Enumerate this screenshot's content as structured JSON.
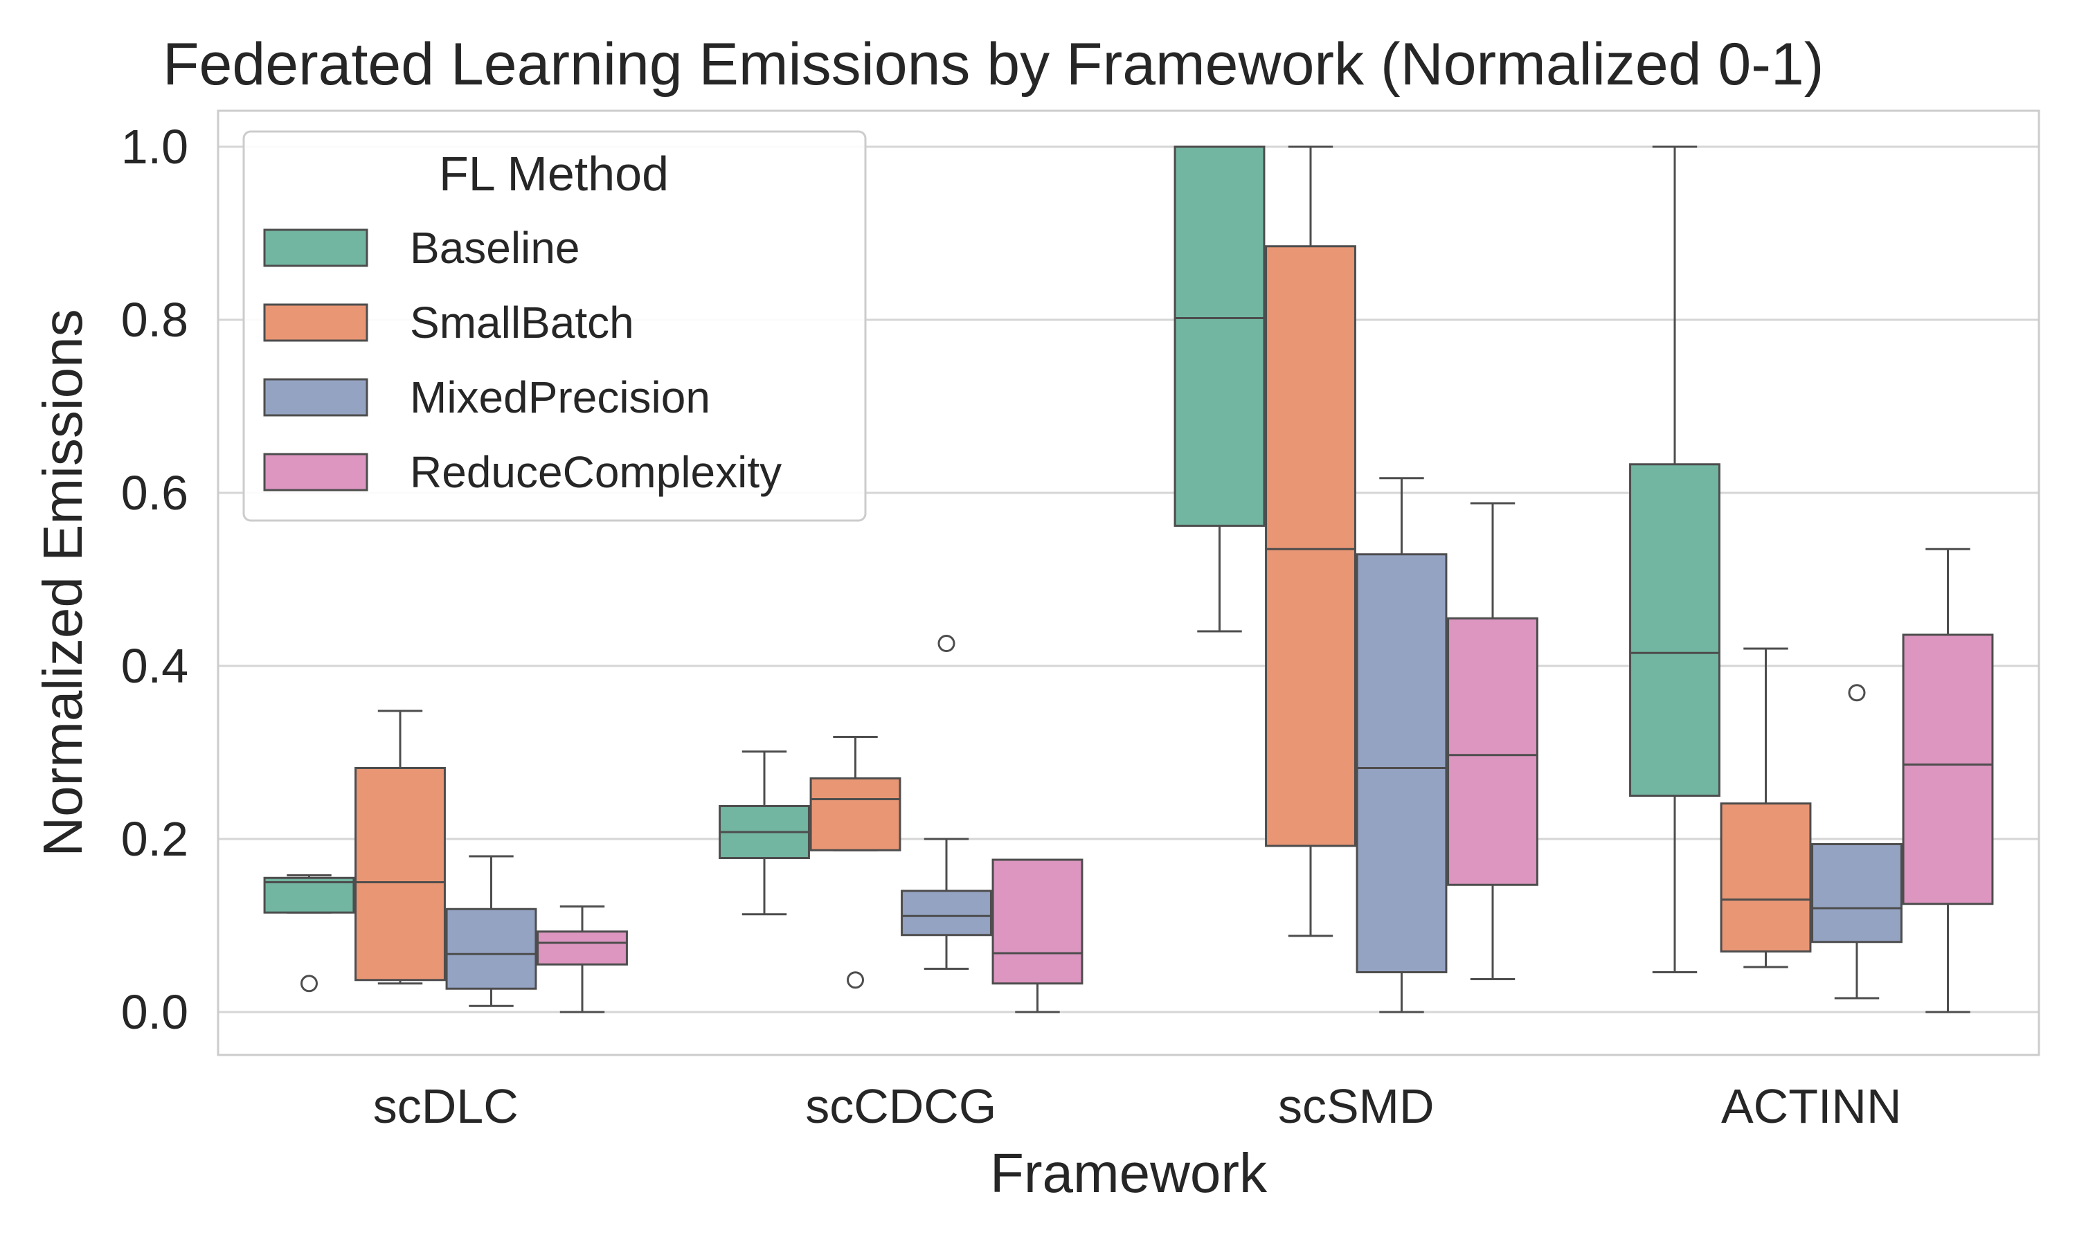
{
  "chart_data": {
    "type": "box",
    "title": "Federated Learning Emissions by Framework (Normalized 0-1)",
    "xlabel": "Framework",
    "ylabel": "Normalized Emissions",
    "ylim": [
      -0.05,
      1.05
    ],
    "yticks": [
      0.0,
      0.2,
      0.4,
      0.6,
      0.8,
      1.0
    ],
    "ytick_labels": [
      "0.0",
      "0.2",
      "0.4",
      "0.6",
      "0.8",
      "1.0"
    ],
    "grid": true,
    "legend": {
      "title": "FL Method",
      "position": "top-left"
    },
    "categories": [
      "scDLC",
      "scCDCG",
      "scSMD",
      "ACTINN"
    ],
    "series": [
      {
        "name": "Baseline",
        "color": "#72B6A1",
        "boxes": [
          {
            "whislo": 0.115,
            "q1": 0.115,
            "med": 0.15,
            "q3": 0.155,
            "whishi": 0.158,
            "fliers": [
              0.033
            ]
          },
          {
            "whislo": 0.113,
            "q1": 0.178,
            "med": 0.208,
            "q3": 0.238,
            "whishi": 0.301,
            "fliers": []
          },
          {
            "whislo": 0.44,
            "q1": 0.562,
            "med": 0.802,
            "q3": 1.0,
            "whishi": 1.0,
            "fliers": []
          },
          {
            "whislo": 0.046,
            "q1": 0.25,
            "med": 0.415,
            "q3": 0.633,
            "whishi": 1.0,
            "fliers": []
          }
        ]
      },
      {
        "name": "SmallBatch",
        "color": "#E99675",
        "boxes": [
          {
            "whislo": 0.033,
            "q1": 0.037,
            "med": 0.15,
            "q3": 0.282,
            "whishi": 0.348,
            "fliers": []
          },
          {
            "whislo": 0.187,
            "q1": 0.187,
            "med": 0.246,
            "q3": 0.27,
            "whishi": 0.318,
            "fliers": [
              0.037
            ]
          },
          {
            "whislo": 0.088,
            "q1": 0.192,
            "med": 0.535,
            "q3": 0.885,
            "whishi": 1.0,
            "fliers": []
          },
          {
            "whislo": 0.052,
            "q1": 0.07,
            "med": 0.13,
            "q3": 0.241,
            "whishi": 0.42,
            "fliers": []
          }
        ]
      },
      {
        "name": "MixedPrecision",
        "color": "#95A3C3",
        "boxes": [
          {
            "whislo": 0.007,
            "q1": 0.027,
            "med": 0.067,
            "q3": 0.119,
            "whishi": 0.18,
            "fliers": []
          },
          {
            "whislo": 0.05,
            "q1": 0.089,
            "med": 0.111,
            "q3": 0.14,
            "whishi": 0.2,
            "fliers": [
              0.426
            ]
          },
          {
            "whislo": 0.0,
            "q1": 0.046,
            "med": 0.282,
            "q3": 0.529,
            "whishi": 0.617,
            "fliers": []
          },
          {
            "whislo": 0.016,
            "q1": 0.081,
            "med": 0.12,
            "q3": 0.194,
            "whishi": 0.194,
            "fliers": [
              0.369
            ]
          }
        ]
      },
      {
        "name": "ReduceComplexity",
        "color": "#DC96C0",
        "boxes": [
          {
            "whislo": 0.0,
            "q1": 0.055,
            "med": 0.08,
            "q3": 0.093,
            "whishi": 0.122,
            "fliers": []
          },
          {
            "whislo": 0.0,
            "q1": 0.033,
            "med": 0.068,
            "q3": 0.176,
            "whishi": 0.176,
            "fliers": []
          },
          {
            "whislo": 0.038,
            "q1": 0.147,
            "med": 0.297,
            "q3": 0.455,
            "whishi": 0.588,
            "fliers": []
          },
          {
            "whislo": 0.0,
            "q1": 0.125,
            "med": 0.286,
            "q3": 0.436,
            "whishi": 0.535,
            "fliers": []
          }
        ]
      }
    ]
  }
}
